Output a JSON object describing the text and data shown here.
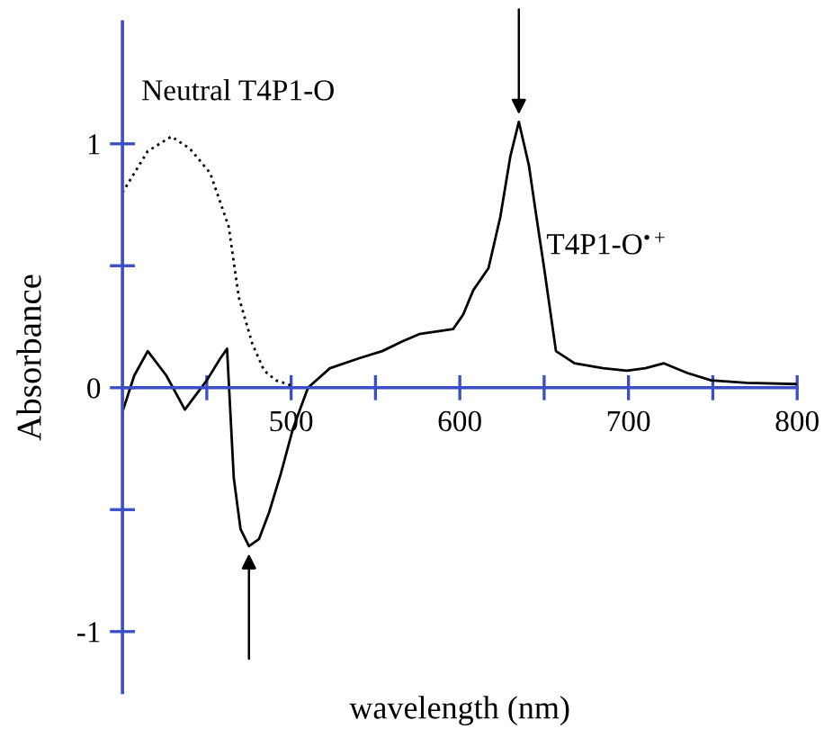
{
  "chart_data": {
    "type": "line",
    "xlabel": "wavelength (nm)",
    "ylabel": "Absorbance",
    "xlim": [
      400,
      800
    ],
    "ylim": [
      -1.25,
      1.5
    ],
    "xticks": [
      {
        "value": 450,
        "label": null
      },
      500,
      {
        "value": 550,
        "label": null
      },
      600,
      {
        "value": 650,
        "label": null
      },
      700,
      {
        "value": 750,
        "label": null
      },
      800
    ],
    "yticks": [
      -1,
      {
        "value": -0.5,
        "label": null
      },
      0,
      {
        "value": 0.5,
        "label": null
      },
      1
    ],
    "grid": false,
    "legend": false,
    "marker": "none",
    "series": [
      {
        "name": "Neutral T4P1-O",
        "color": "#000000",
        "line_style": "dotted",
        "x": [
          400,
          415,
          429,
          440,
          452,
          463,
          469,
          477,
          484,
          491,
          498,
          502
        ],
        "values": [
          0.8,
          0.97,
          1.03,
          0.98,
          0.88,
          0.66,
          0.37,
          0.18,
          0.07,
          0.03,
          0.015,
          0.0
        ]
      },
      {
        "name": "T4P1-O$^{•+}$",
        "color": "#000000",
        "line_style": "solid",
        "x": [
          400,
          407,
          415,
          426,
          437,
          450,
          458,
          462,
          466,
          470,
          475,
          481,
          487,
          494,
          501,
          510,
          523,
          540,
          554,
          566,
          576,
          586,
          596,
          602,
          608,
          617,
          624,
          630,
          635,
          638,
          641,
          645,
          650,
          657,
          668,
          685,
          699,
          710,
          721,
          735,
          749,
          770,
          799
        ],
        "values": [
          -0.1,
          0.05,
          0.15,
          0.05,
          -0.09,
          0.03,
          0.12,
          0.16,
          -0.37,
          -0.58,
          -0.65,
          -0.62,
          -0.51,
          -0.35,
          -0.17,
          0.0,
          0.08,
          0.12,
          0.15,
          0.19,
          0.22,
          0.23,
          0.24,
          0.3,
          0.4,
          0.49,
          0.7,
          0.95,
          1.09,
          1.0,
          0.91,
          0.72,
          0.49,
          0.15,
          0.1,
          0.08,
          0.07,
          0.08,
          0.1,
          0.06,
          0.03,
          0.02,
          0.015
        ]
      }
    ]
  }
}
